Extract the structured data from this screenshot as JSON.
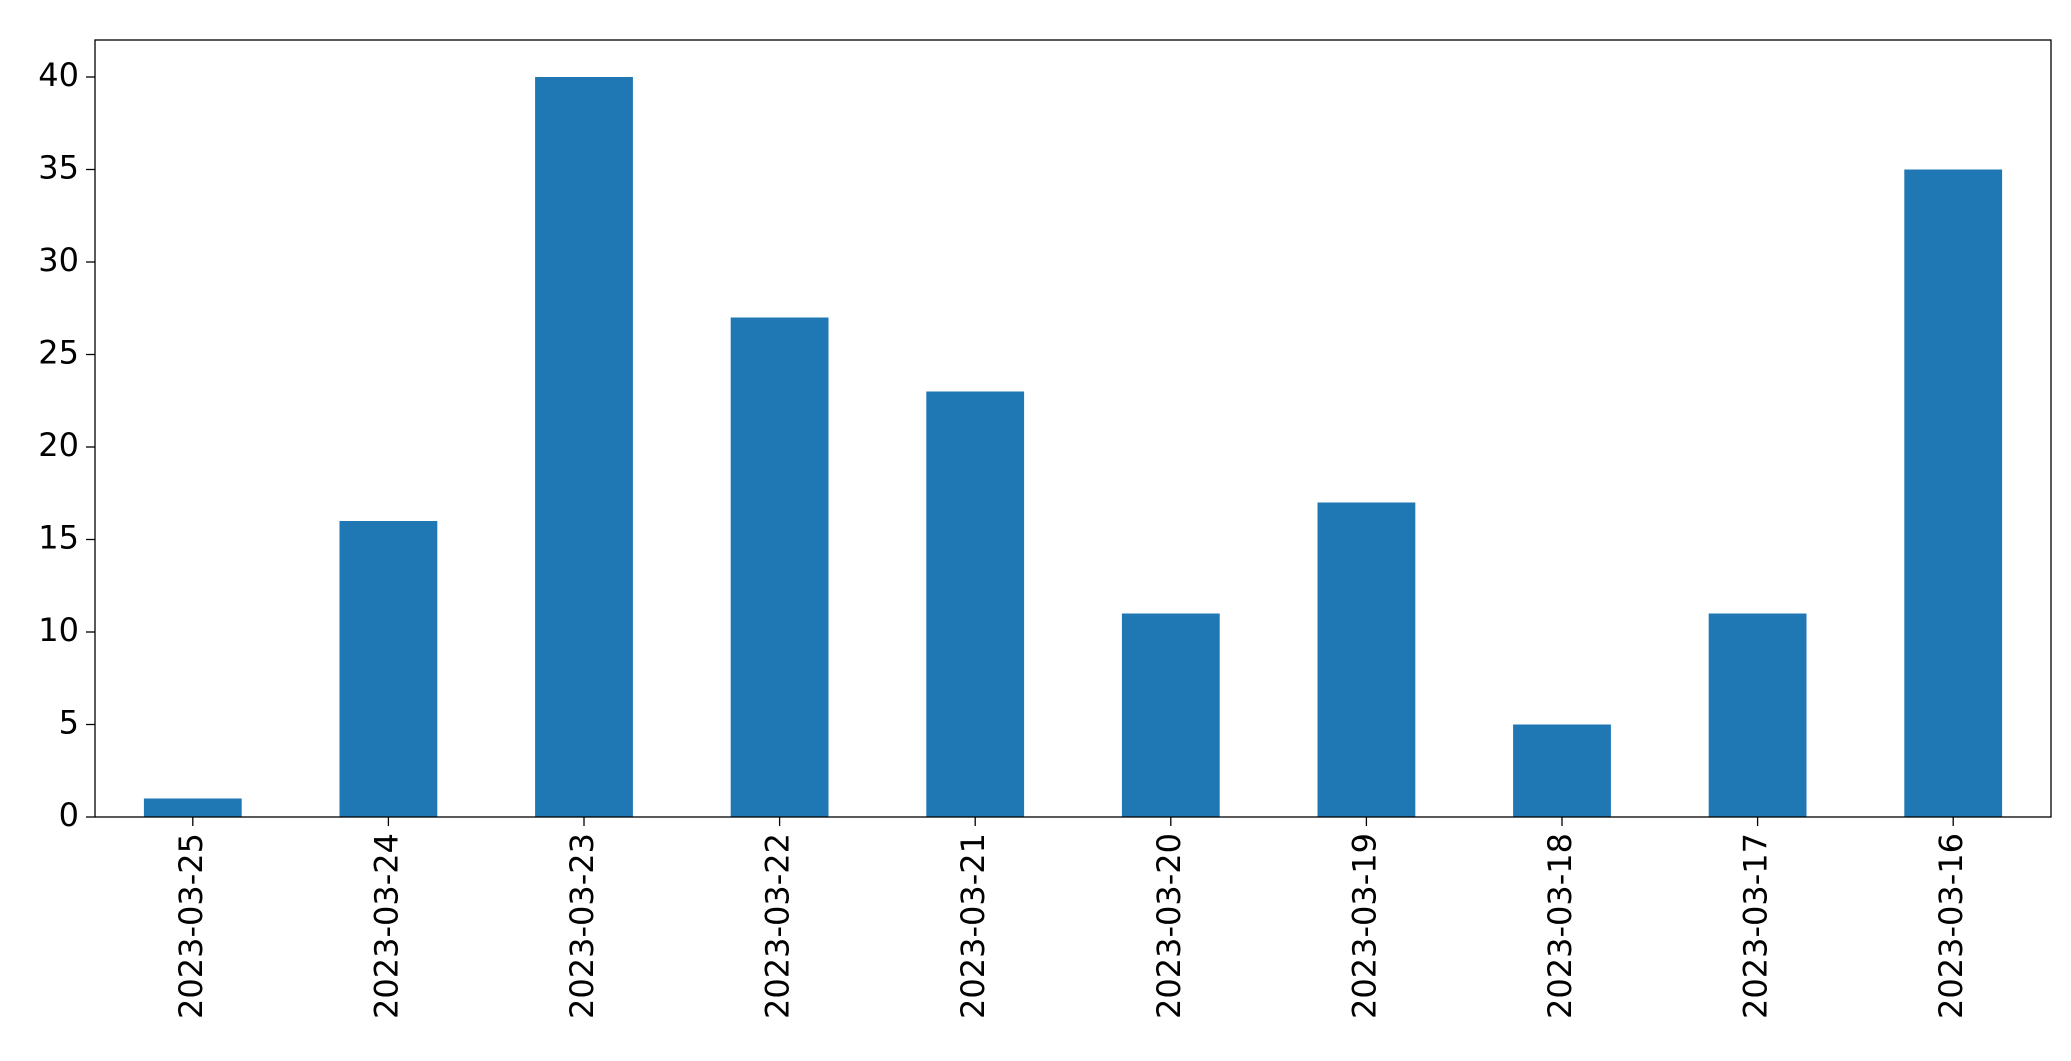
{
  "chart_data": {
    "type": "bar",
    "categories": [
      "2023-03-25",
      "2023-03-24",
      "2023-03-23",
      "2023-03-22",
      "2023-03-21",
      "2023-03-20",
      "2023-03-19",
      "2023-03-18",
      "2023-03-17",
      "2023-03-16"
    ],
    "values": [
      1,
      16,
      40,
      27,
      23,
      11,
      17,
      5,
      11,
      35
    ],
    "color": "#1f77b4",
    "ylim": [
      0,
      42
    ],
    "yticks": [
      0,
      5,
      10,
      15,
      20,
      25,
      30,
      35,
      40
    ],
    "grid": false
  }
}
